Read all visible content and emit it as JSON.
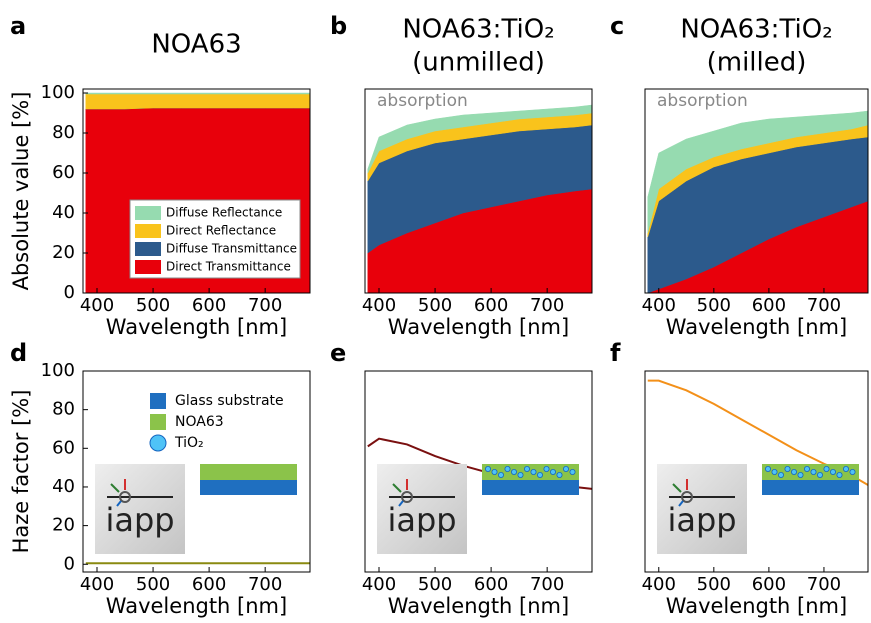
{
  "chart_data": [
    {
      "type": "area",
      "label": "a",
      "title": [
        "NOA63"
      ],
      "xlabel": "Wavelength [nm]",
      "ylabel": "Absolute value [%]",
      "x": [
        380,
        400,
        450,
        500,
        550,
        600,
        650,
        700,
        750,
        780
      ],
      "xlim": [
        375,
        780
      ],
      "xticks": [
        400,
        500,
        600,
        700
      ],
      "ylim": [
        0,
        102
      ],
      "yticks": [
        0,
        20,
        40,
        60,
        80,
        100
      ],
      "legend": "lower right",
      "series": [
        {
          "name": "Direct Transmittance",
          "color": "#e8000b",
          "values": [
            92,
            92,
            92,
            92.5,
            92.5,
            92.5,
            92.5,
            92.5,
            92.5,
            92.5
          ]
        },
        {
          "name": "Diffuse Transmittance",
          "color": "#2c5a8c",
          "values": [
            0,
            0,
            0,
            0,
            0,
            0,
            0,
            0,
            0,
            0
          ]
        },
        {
          "name": "Direct Reflectance",
          "color": "#f9c31c",
          "values": [
            7.5,
            7.5,
            7.5,
            7,
            7,
            7,
            7,
            7,
            7,
            7
          ]
        },
        {
          "name": "Diffuse Reflectance",
          "color": "#96dbb0",
          "values": [
            0.5,
            0.5,
            0.5,
            0.5,
            0.5,
            0.5,
            0.5,
            0.5,
            0.5,
            0.5
          ]
        }
      ]
    },
    {
      "type": "area",
      "label": "b",
      "title": [
        "NOA63:TiO₂",
        "(unmilled)"
      ],
      "xlabel": "Wavelength [nm]",
      "annotation": "absorption",
      "x": [
        380,
        400,
        450,
        500,
        550,
        600,
        650,
        700,
        750,
        780
      ],
      "xlim": [
        375,
        780
      ],
      "xticks": [
        400,
        500,
        600,
        700
      ],
      "ylim": [
        0,
        102
      ],
      "series": [
        {
          "color": "#e8000b",
          "values": [
            20,
            24,
            30,
            35,
            40,
            43,
            46,
            49,
            51,
            52
          ]
        },
        {
          "color": "#2c5a8c",
          "values": [
            36,
            41,
            41,
            40,
            37,
            36,
            35,
            33,
            32,
            32
          ]
        },
        {
          "color": "#f9c31c",
          "values": [
            4,
            6,
            6,
            6,
            6,
            6,
            6,
            6,
            6,
            6
          ]
        },
        {
          "color": "#96dbb0",
          "values": [
            2,
            7,
            7,
            6,
            6,
            5,
            4,
            4,
            4,
            4
          ]
        }
      ]
    },
    {
      "type": "area",
      "label": "c",
      "title": [
        "NOA63:TiO₂",
        "(milled)"
      ],
      "xlabel": "Wavelength [nm]",
      "annotation": "absorption",
      "x": [
        380,
        400,
        450,
        500,
        550,
        600,
        650,
        700,
        750,
        780
      ],
      "xlim": [
        375,
        780
      ],
      "xticks": [
        400,
        500,
        600,
        700
      ],
      "ylim": [
        0,
        102
      ],
      "series": [
        {
          "color": "#e8000b",
          "values": [
            0,
            2,
            7,
            13,
            20,
            27,
            33,
            38,
            43,
            46
          ]
        },
        {
          "color": "#2c5a8c",
          "values": [
            28,
            44,
            49,
            50,
            47,
            43,
            40,
            37,
            34,
            32
          ]
        },
        {
          "color": "#f9c31c",
          "values": [
            2,
            6,
            6,
            5,
            5,
            5,
            5,
            5,
            5,
            6
          ]
        },
        {
          "color": "#96dbb0",
          "values": [
            18,
            18,
            15,
            13,
            13,
            12,
            10,
            9,
            8,
            7
          ]
        }
      ]
    },
    {
      "type": "line",
      "label": "d",
      "xlabel": "Wavelength [nm]",
      "ylabel": "Haze factor [%]",
      "logo_text": "iapp",
      "x": [
        380,
        400,
        450,
        500,
        550,
        600,
        650,
        700,
        750,
        780
      ],
      "xlim": [
        375,
        780
      ],
      "xticks": [
        400,
        500,
        600,
        700
      ],
      "ylim": [
        -4,
        100
      ],
      "yticks": [
        0,
        20,
        40,
        60,
        80,
        100
      ],
      "inset_legend": [
        {
          "label": "Glass substrate",
          "color": "#1f6fc0",
          "marker": "square"
        },
        {
          "label": "NOA63",
          "color": "#8bc34a",
          "marker": "square"
        },
        {
          "label": "TiO₂",
          "color": "#4fc3f7",
          "marker": "circle"
        }
      ],
      "series": [
        {
          "color": "#8a8a10",
          "values": [
            0.5,
            0.5,
            0.5,
            0.5,
            0.5,
            0.5,
            0.5,
            0.5,
            0.5,
            0.5
          ]
        }
      ]
    },
    {
      "type": "line",
      "label": "e",
      "xlabel": "Wavelength [nm]",
      "logo_text": "iapp",
      "x": [
        380,
        400,
        450,
        500,
        550,
        600,
        650,
        700,
        750,
        780
      ],
      "xlim": [
        375,
        780
      ],
      "xticks": [
        400,
        500,
        600,
        700
      ],
      "ylim": [
        -4,
        100
      ],
      "series": [
        {
          "color": "#7a1010",
          "values": [
            61,
            65,
            62,
            56,
            51,
            47,
            44,
            42,
            40,
            39
          ]
        }
      ]
    },
    {
      "type": "line",
      "label": "f",
      "xlabel": "Wavelength [nm]",
      "logo_text": "iapp",
      "x": [
        380,
        400,
        450,
        500,
        550,
        600,
        650,
        700,
        750,
        780
      ],
      "xlim": [
        375,
        780
      ],
      "xticks": [
        400,
        500,
        600,
        700
      ],
      "ylim": [
        -4,
        100
      ],
      "series": [
        {
          "color": "#f39019",
          "values": [
            95,
            95,
            90,
            83,
            75,
            67,
            59,
            52,
            46,
            41
          ]
        }
      ]
    }
  ]
}
